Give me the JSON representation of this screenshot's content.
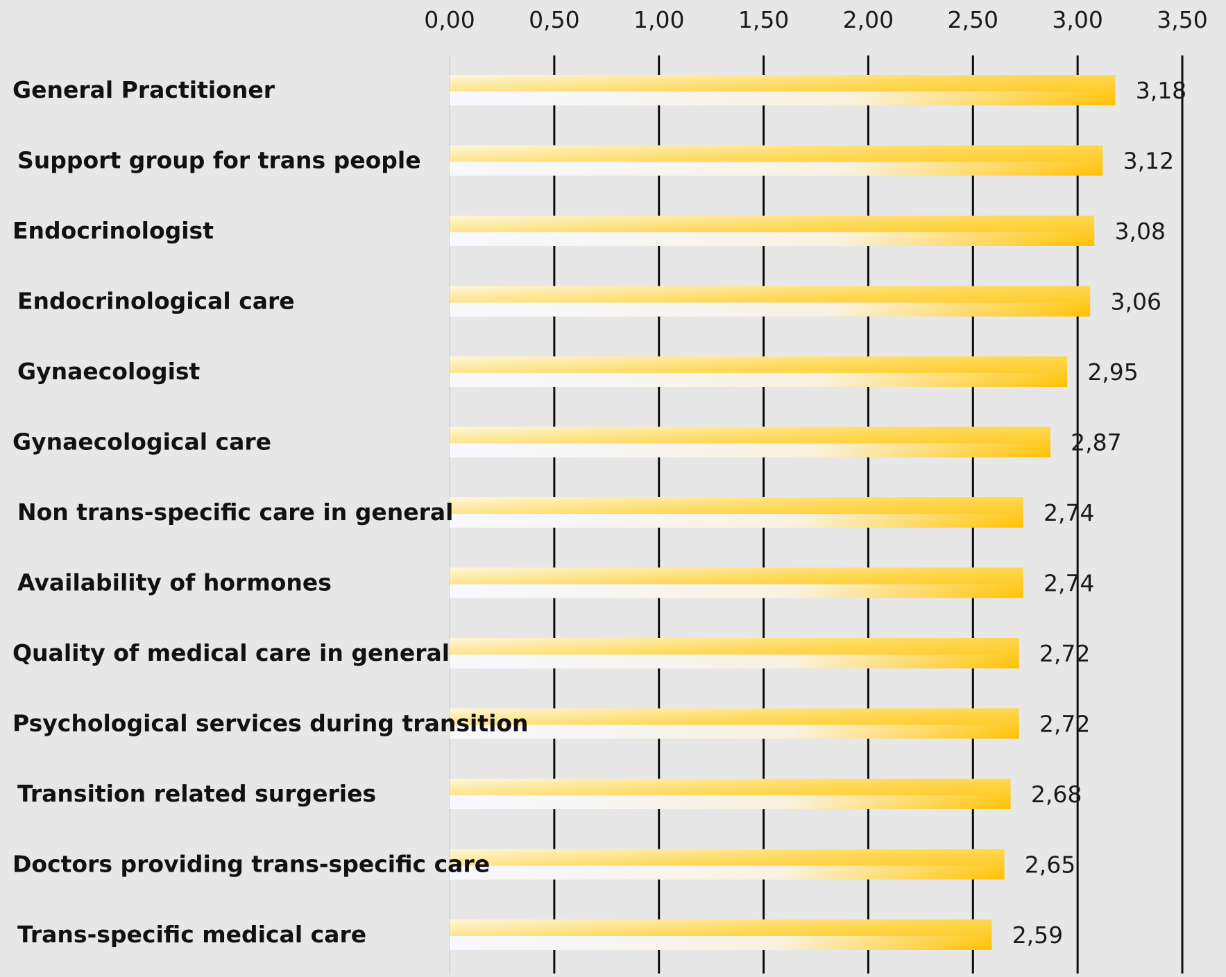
{
  "chart_data": {
    "type": "bar",
    "orientation": "horizontal",
    "title": "",
    "xlabel": "",
    "ylabel": "",
    "xlim": [
      0,
      3.5
    ],
    "ticks": [
      "0,00",
      "0,50",
      "1,00",
      "1,50",
      "2,00",
      "2,50",
      "3,00",
      "3,50"
    ],
    "tick_values": [
      0,
      0.5,
      1.0,
      1.5,
      2.0,
      2.5,
      3.0,
      3.5
    ],
    "tick_position": "top",
    "grid": true,
    "legend": "none",
    "categories": [
      "General Practitioner",
      "Support group for trans people",
      "Endocrinologist",
      "Endocrinological care",
      "Gynaecologist",
      "Gynaecological care",
      "Non trans-specific care in general",
      "Availability of hormones",
      "Quality of  medical care in general",
      "Psychological services during transition",
      "Transition related surgeries",
      "Doctors providing trans-specific care",
      "Trans-specific medical care"
    ],
    "values": [
      3.18,
      3.12,
      3.08,
      3.06,
      2.95,
      2.87,
      2.74,
      2.74,
      2.72,
      2.72,
      2.68,
      2.65,
      2.59
    ],
    "data_labels": [
      "3,18",
      "3,12",
      "3,08",
      "3,06",
      "2,95",
      "2,87",
      "2,74",
      "2,74",
      "2,72",
      "2,72",
      "2,68",
      "2,65",
      "2,59"
    ]
  },
  "colors": {
    "background": "#e7e7e7",
    "bar_main": "#ffc000",
    "bar_light": "#fdf2c8",
    "bar_highlight": "#f8f8ff",
    "gridline": "#0d0d0d"
  }
}
